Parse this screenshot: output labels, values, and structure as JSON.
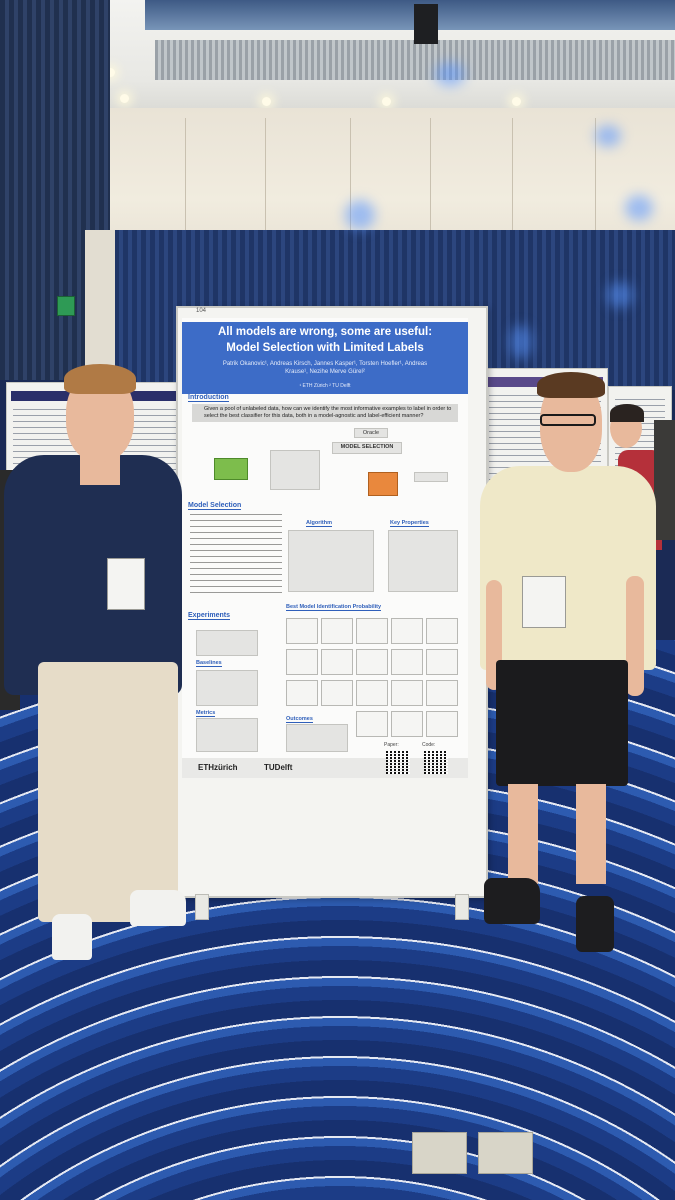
{
  "poster": {
    "board_tag": "104",
    "title_line1": "All models are wrong, some are useful:",
    "title_line2": "Model Selection with Limited Labels",
    "authors": "Patrik Okanovic¹, Andreas Kirsch, Jannes Kasper¹, Torsten Hoefler¹, Andreas Krause¹, Nezihe Merve Gürel²",
    "affiliations": "¹ ETH Zürich   ² TU Delft",
    "sections": {
      "introduction": "Introduction",
      "model_selection": "Model Selection",
      "algorithm": "Algorithm",
      "key_properties": "Key Properties",
      "experiments": "Experiments",
      "baselines": "Baselines",
      "metrics": "Metrics",
      "outcomes": "Outcomes",
      "best_model": "Best Model Identification Probability"
    },
    "question": "Given a pool of unlabeled data, how can we identify the most informative examples to label in order to select the best classifier for this data, both in a model-agnostic and label-efficient manner?",
    "model_selection_box": "MODEL SELECTION",
    "oracle_label": "Oracle",
    "paper_label": "Paper:",
    "code_label": "Code:",
    "logos": {
      "eth": "ETHzürich",
      "tud": "TUDelft"
    },
    "colors": {
      "header": "#3d6cc7",
      "accent_green": "#7dbd4c",
      "accent_orange": "#e9883d"
    }
  }
}
